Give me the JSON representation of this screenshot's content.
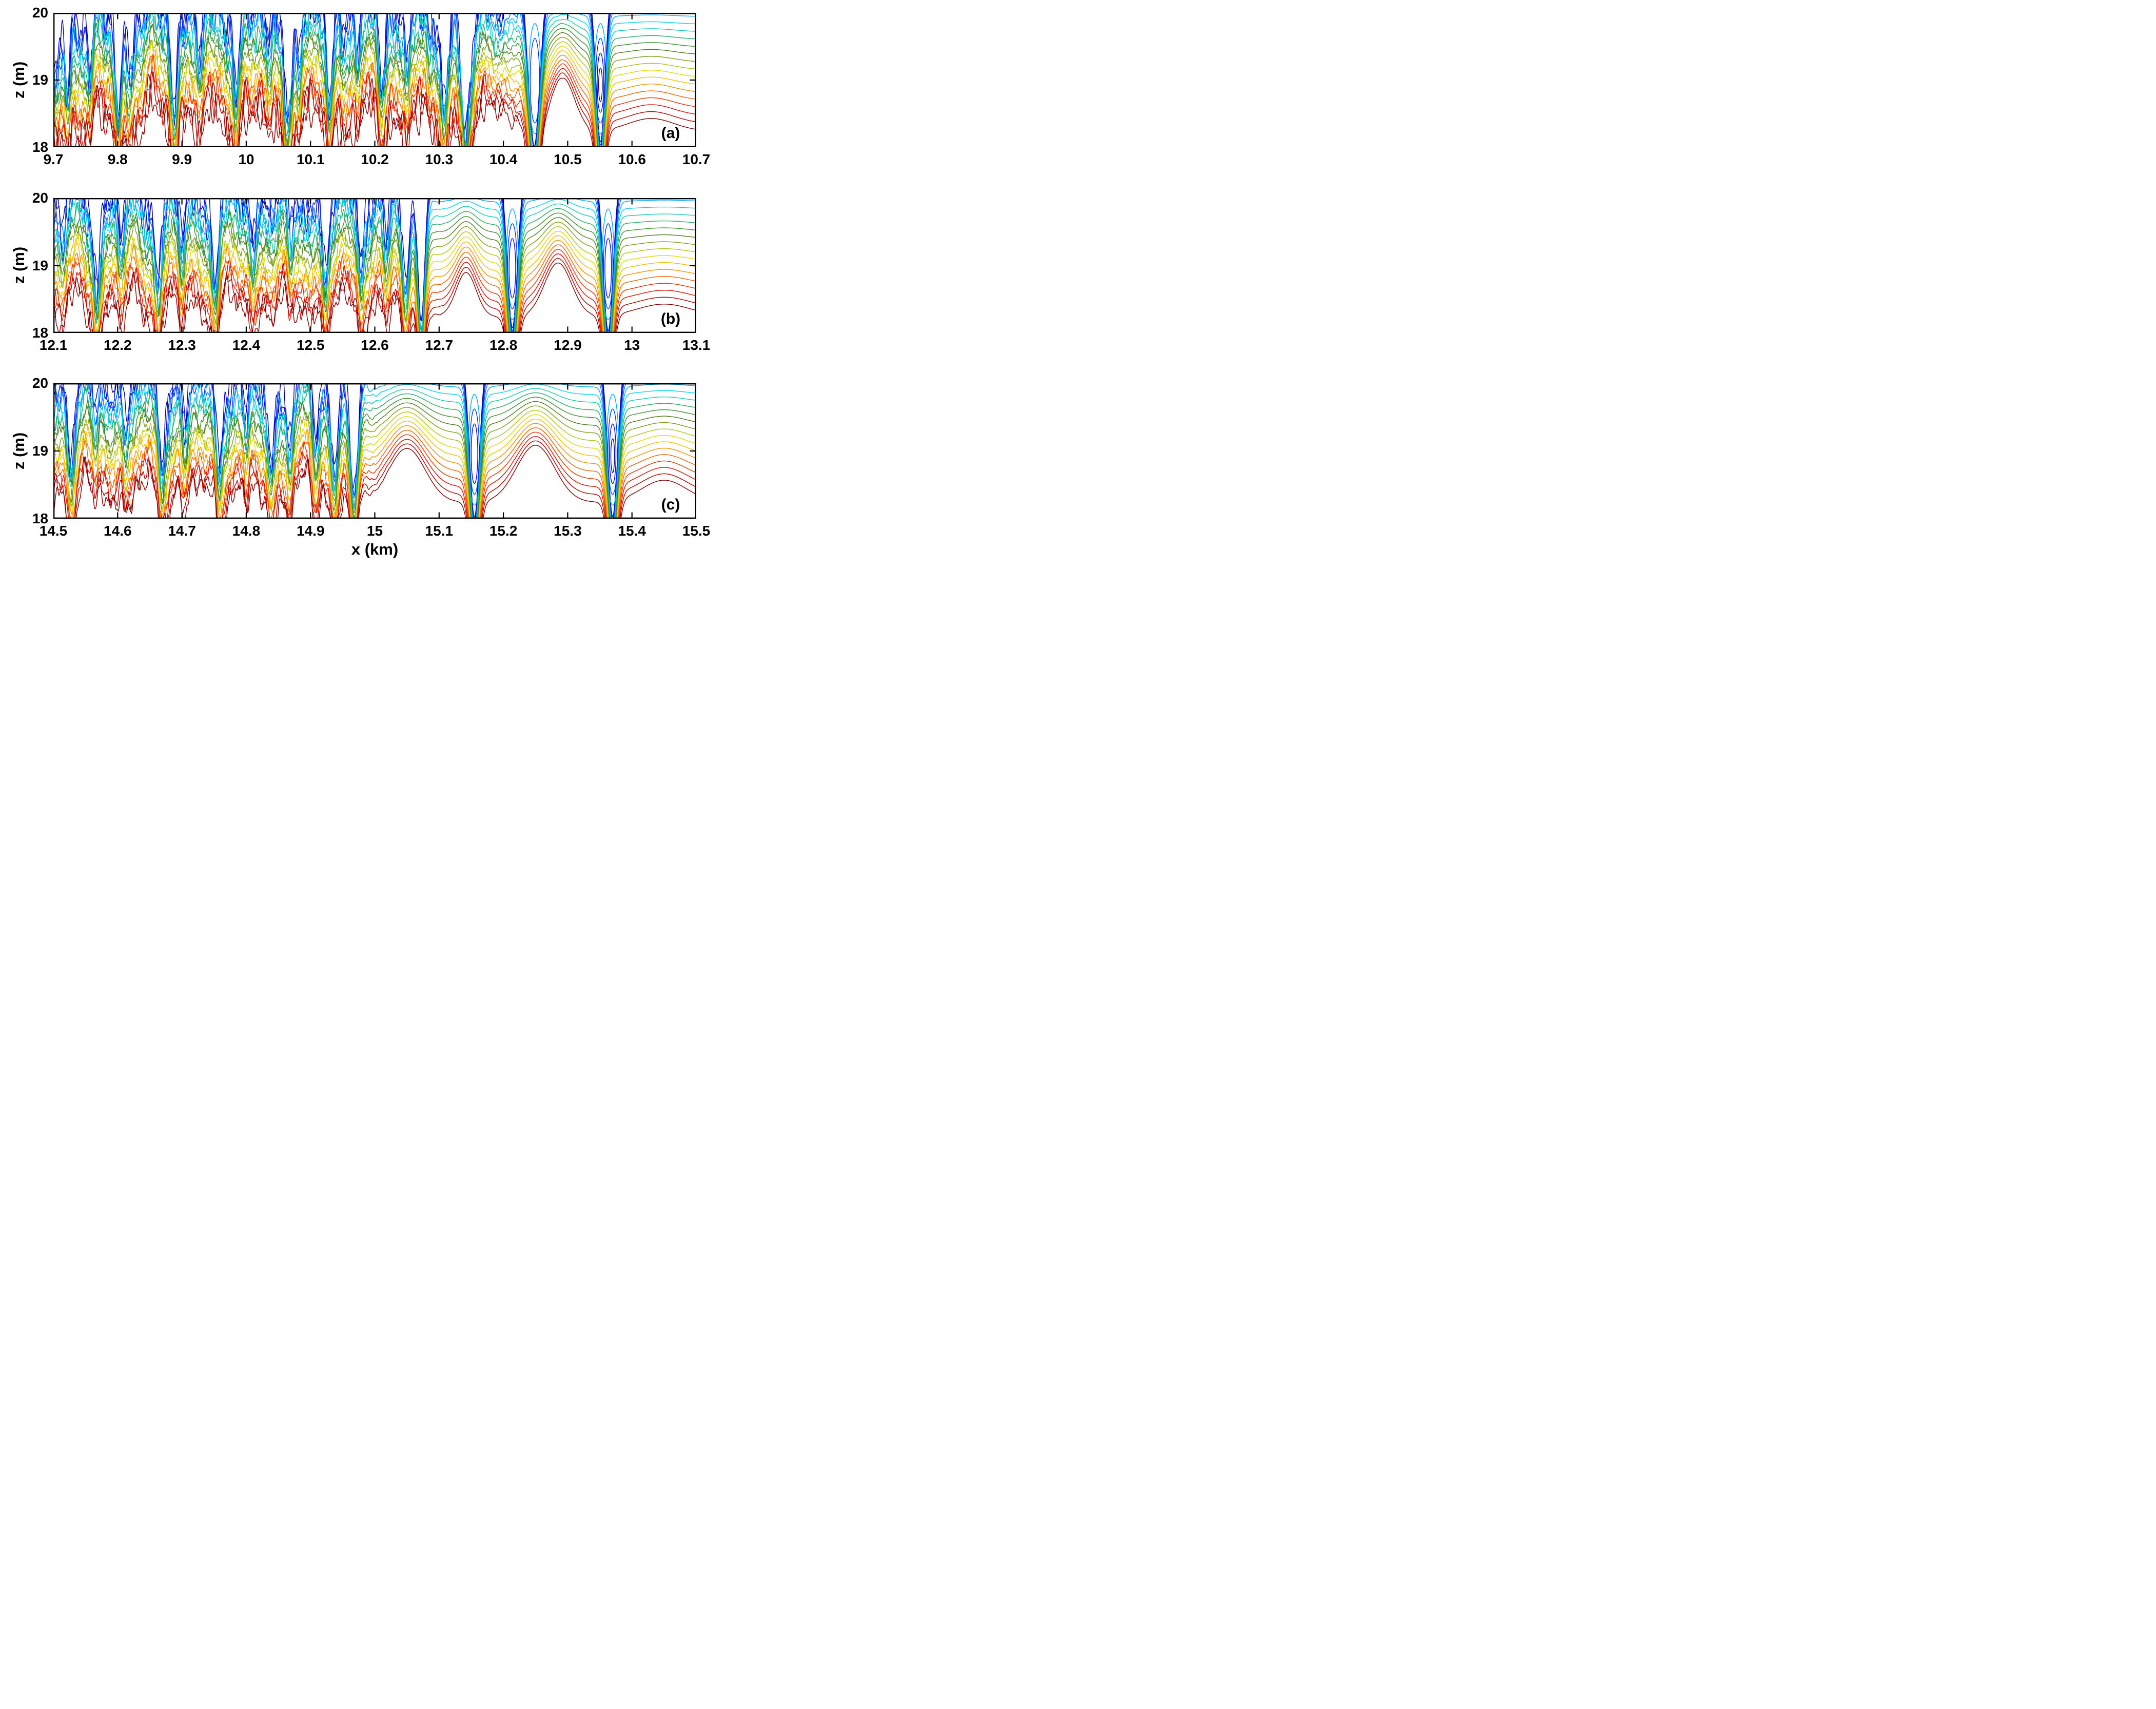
{
  "chart_data": {
    "type": "contour",
    "description": "Three stacked panels of rainbow (jet colormap) contour lines of a stratified scalar field in the ocean pycnocline; turbulent billows on the left of each panel evolve into smooth internal-wave domes separated by narrow deep plunges (with nested closed blue contours) toward the right.",
    "colormap": "jet",
    "contour_levels_count": 20,
    "line_colors": [
      "#000089",
      "#0000D8",
      "#0030FF",
      "#0070FF",
      "#00A8FF",
      "#00D4F0",
      "#16CDB2",
      "#2BAA62",
      "#3A8F30",
      "#4E7D1C",
      "#7AA018",
      "#AFC414",
      "#E0DC00",
      "#F5C000",
      "#F59200",
      "#EE6400",
      "#E83600",
      "#DC0E00",
      "#B00000",
      "#7C0000"
    ],
    "xlabel": "x (km)",
    "ylabel": "z (m)",
    "ylim": [
      18,
      20
    ],
    "yticks": [
      "20",
      "19",
      "18"
    ],
    "grid": false,
    "legend": null,
    "panels": [
      {
        "id": "a",
        "label": "(a)",
        "xlim": [
          9.7,
          10.7
        ],
        "xticks": [
          "9.7",
          "9.8",
          "9.9",
          "10",
          "10.1",
          "10.2",
          "10.3",
          "10.4",
          "10.5",
          "10.6",
          "10.7"
        ],
        "seed": 11,
        "top_noise": 1.15,
        "warm_noise": 1.0,
        "billow": 1.25,
        "turbulence": {
          "end": 10.4,
          "fade": 0.05
        },
        "troughs": [
          [
            9.706,
            0.9,
            0.008
          ],
          [
            9.722,
            0.7,
            0.006
          ],
          [
            9.757,
            0.85,
            0.007
          ],
          [
            9.8,
            1.0,
            0.008
          ],
          [
            9.818,
            0.7,
            0.006
          ],
          [
            9.888,
            0.9,
            0.007
          ],
          [
            9.93,
            0.5,
            0.006
          ],
          [
            9.985,
            0.65,
            0.006
          ],
          [
            10.035,
            0.5,
            0.006
          ],
          [
            10.063,
            0.95,
            0.008
          ],
          [
            10.082,
            0.7,
            0.006
          ],
          [
            10.13,
            0.9,
            0.007
          ],
          [
            10.175,
            0.5,
            0.006
          ],
          [
            10.21,
            0.6,
            0.006
          ],
          [
            10.25,
            0.45,
            0.006
          ],
          [
            10.285,
            0.55,
            0.006
          ],
          [
            10.308,
            0.9,
            0.007
          ],
          [
            10.342,
            1.6,
            0.01
          ],
          [
            10.448,
            1.75,
            0.012
          ],
          [
            10.551,
            1.7,
            0.01
          ]
        ],
        "domes": [
          [
            10.392,
            0.5,
            0.018
          ],
          [
            10.492,
            0.85,
            0.026
          ],
          [
            10.63,
            0.2,
            0.05
          ]
        ],
        "ovals": [
          [
            10.449,
            2
          ],
          [
            10.551,
            4
          ]
        ]
      },
      {
        "id": "b",
        "label": "(b)",
        "xlim": [
          12.1,
          13.1
        ],
        "xticks": [
          "12.1",
          "12.2",
          "12.3",
          "12.4",
          "12.5",
          "12.6",
          "12.7",
          "12.8",
          "12.9",
          "13",
          "13.1"
        ],
        "seed": 23,
        "top_noise": 0.9,
        "warm_noise": 0.5,
        "billow": 1.0,
        "turbulence": {
          "end": 12.655,
          "fade": 0.03
        },
        "troughs": [
          [
            12.115,
            0.5,
            0.006
          ],
          [
            12.168,
            0.95,
            0.008
          ],
          [
            12.205,
            0.5,
            0.006
          ],
          [
            12.263,
            0.9,
            0.007
          ],
          [
            12.3,
            0.55,
            0.006
          ],
          [
            12.352,
            0.85,
            0.007
          ],
          [
            12.41,
            0.5,
            0.006
          ],
          [
            12.468,
            0.6,
            0.006
          ],
          [
            12.523,
            0.9,
            0.007
          ],
          [
            12.578,
            0.6,
            0.006
          ],
          [
            12.618,
            0.5,
            0.006
          ],
          [
            12.648,
            1.1,
            0.008
          ],
          [
            12.672,
            1.45,
            0.008
          ],
          [
            12.814,
            1.7,
            0.011
          ],
          [
            12.963,
            1.75,
            0.011
          ]
        ],
        "domes": [
          [
            12.742,
            0.7,
            0.022
          ],
          [
            12.885,
            0.85,
            0.03
          ],
          [
            13.05,
            0.2,
            0.06
          ]
        ],
        "ovals": [
          [
            12.814,
            3
          ],
          [
            12.963,
            3
          ]
        ]
      },
      {
        "id": "c",
        "label": "(c)",
        "xlim": [
          14.5,
          15.5
        ],
        "xticks": [
          "14.5",
          "14.6",
          "14.7",
          "14.8",
          "14.9",
          "15",
          "15.1",
          "15.2",
          "15.3",
          "15.4",
          "15.5"
        ],
        "seed": 41,
        "top_noise": 0.7,
        "warm_noise": 0.45,
        "billow": 1.0,
        "turbulence": {
          "end": 14.972,
          "fade": 0.03
        },
        "troughs": [
          [
            14.527,
            0.8,
            0.007
          ],
          [
            14.565,
            0.5,
            0.006
          ],
          [
            14.612,
            0.5,
            0.006
          ],
          [
            14.668,
            0.9,
            0.007
          ],
          [
            14.705,
            0.55,
            0.006
          ],
          [
            14.757,
            0.85,
            0.007
          ],
          [
            14.8,
            0.6,
            0.006
          ],
          [
            14.838,
            0.95,
            0.008
          ],
          [
            14.868,
            0.7,
            0.006
          ],
          [
            14.908,
            0.6,
            0.006
          ],
          [
            14.937,
            0.95,
            0.008
          ],
          [
            14.968,
            1.35,
            0.009
          ],
          [
            15.155,
            1.75,
            0.011
          ],
          [
            15.37,
            1.75,
            0.011
          ]
        ],
        "domes": [
          [
            15.05,
            0.85,
            0.04
          ],
          [
            15.25,
            0.9,
            0.042
          ],
          [
            15.45,
            0.35,
            0.05
          ]
        ],
        "ovals": [
          [
            15.155,
            3
          ],
          [
            15.37,
            4
          ]
        ]
      }
    ]
  }
}
